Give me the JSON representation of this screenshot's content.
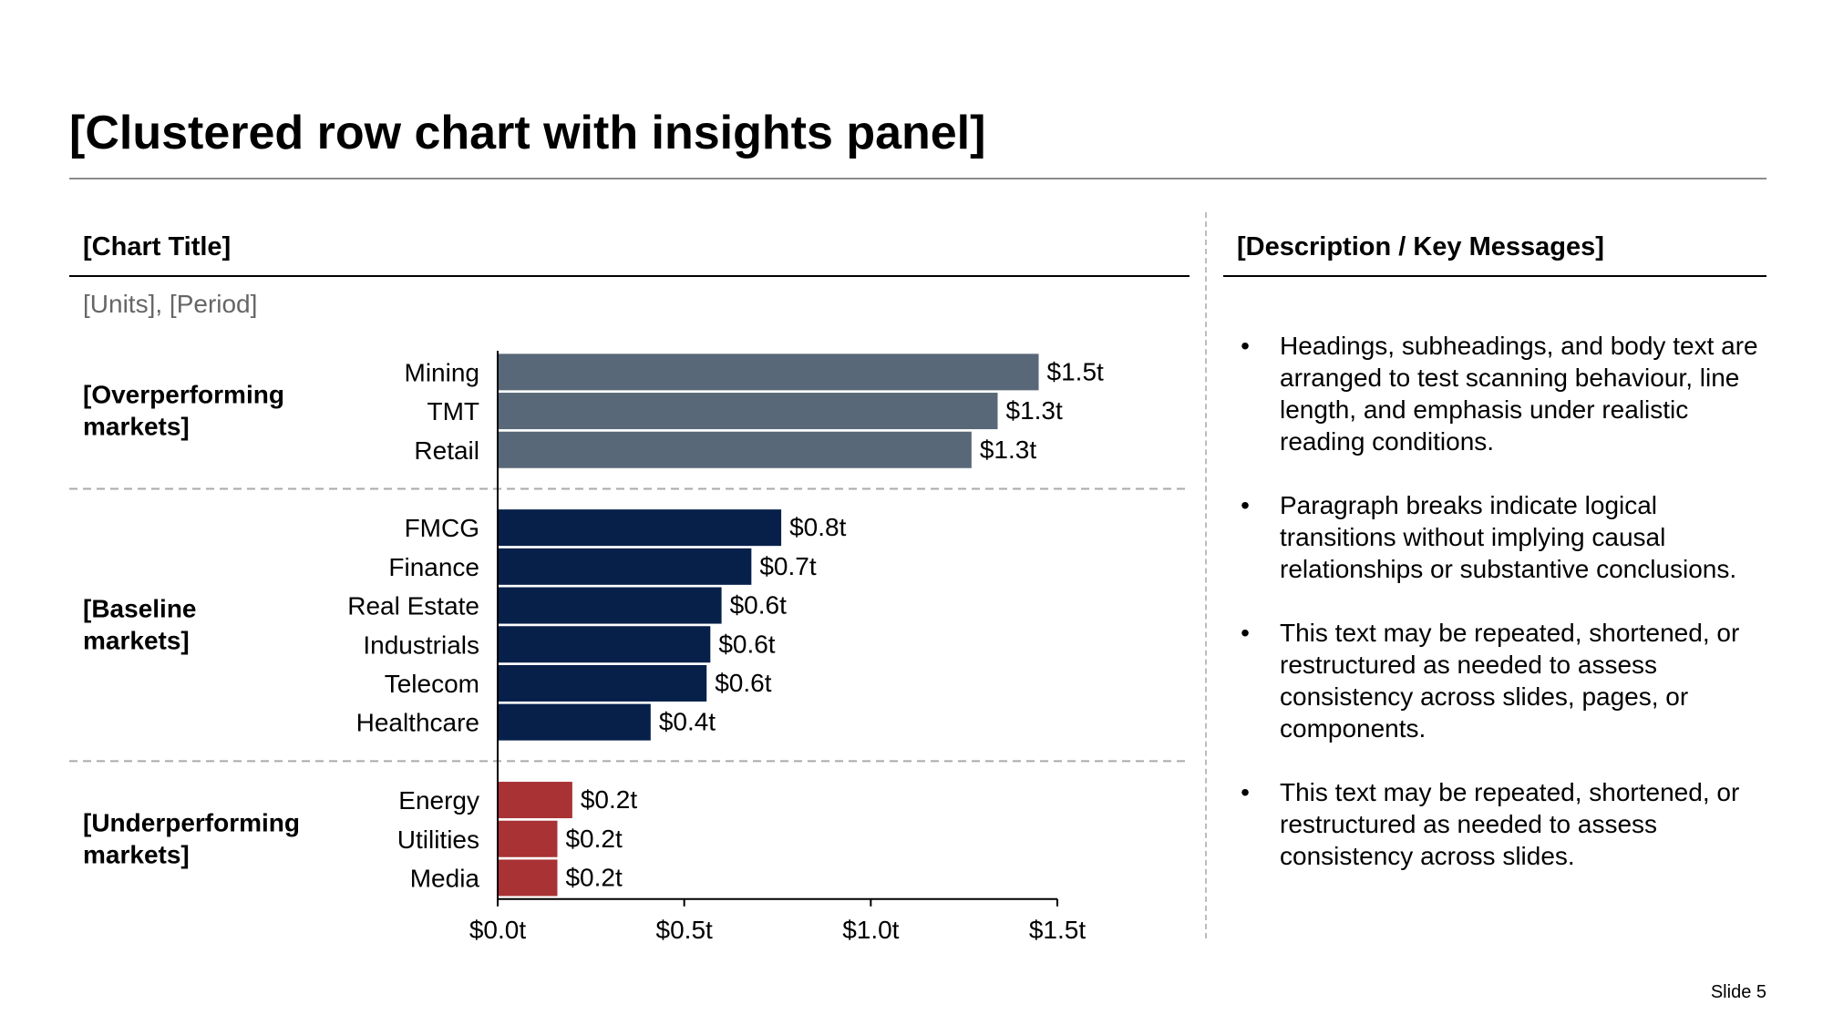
{
  "slide": {
    "title": "[Clustered row chart with insights panel]",
    "number": "Slide 5"
  },
  "chart_panel": {
    "title": "[Chart Title]",
    "units": "[Units], [Period]"
  },
  "insights_panel": {
    "title": "[Description / Key Messages]",
    "bullets": [
      "Headings, subheadings, and body text are arranged to test scanning behaviour, line length, and emphasis under realistic reading conditions.",
      "Paragraph breaks indicate logical transitions without implying causal relationships or substantive conclusions.",
      "This text may be repeated, shortened, or restructured as needed to assess consistency across slides, pages, or components.",
      "This text may be repeated, shortened, or restructured as needed to assess consistency across slides."
    ]
  },
  "chart_data": {
    "type": "bar",
    "orientation": "horizontal",
    "title": "[Chart Title]",
    "subtitle": "[Units], [Period]",
    "xlim": [
      0,
      1.5
    ],
    "x_ticks": [
      "$0.0t",
      "$0.5t",
      "$1.0t",
      "$1.5t"
    ],
    "groups": [
      {
        "label_lines": [
          "[Overperforming",
          "markets]"
        ],
        "color": "#596878",
        "categories": [
          "Mining",
          "TMT",
          "Retail"
        ],
        "values": [
          1.45,
          1.34,
          1.27
        ],
        "labels": [
          "$1.5t",
          "$1.3t",
          "$1.3t"
        ]
      },
      {
        "label_lines": [
          "[Baseline",
          "markets]"
        ],
        "color": "#06204a",
        "categories": [
          "FMCG",
          "Finance",
          "Real Estate",
          "Industrials",
          "Telecom",
          "Healthcare"
        ],
        "values": [
          0.76,
          0.68,
          0.6,
          0.57,
          0.56,
          0.41
        ],
        "labels": [
          "$0.8t",
          "$0.7t",
          "$0.6t",
          "$0.6t",
          "$0.6t",
          "$0.4t"
        ]
      },
      {
        "label_lines": [
          "[Underperforming",
          "markets]"
        ],
        "color": "#a83234",
        "categories": [
          "Energy",
          "Utilities",
          "Media"
        ],
        "values": [
          0.2,
          0.16,
          0.16
        ],
        "labels": [
          "$0.2t",
          "$0.2t",
          "$0.2t"
        ]
      }
    ]
  }
}
